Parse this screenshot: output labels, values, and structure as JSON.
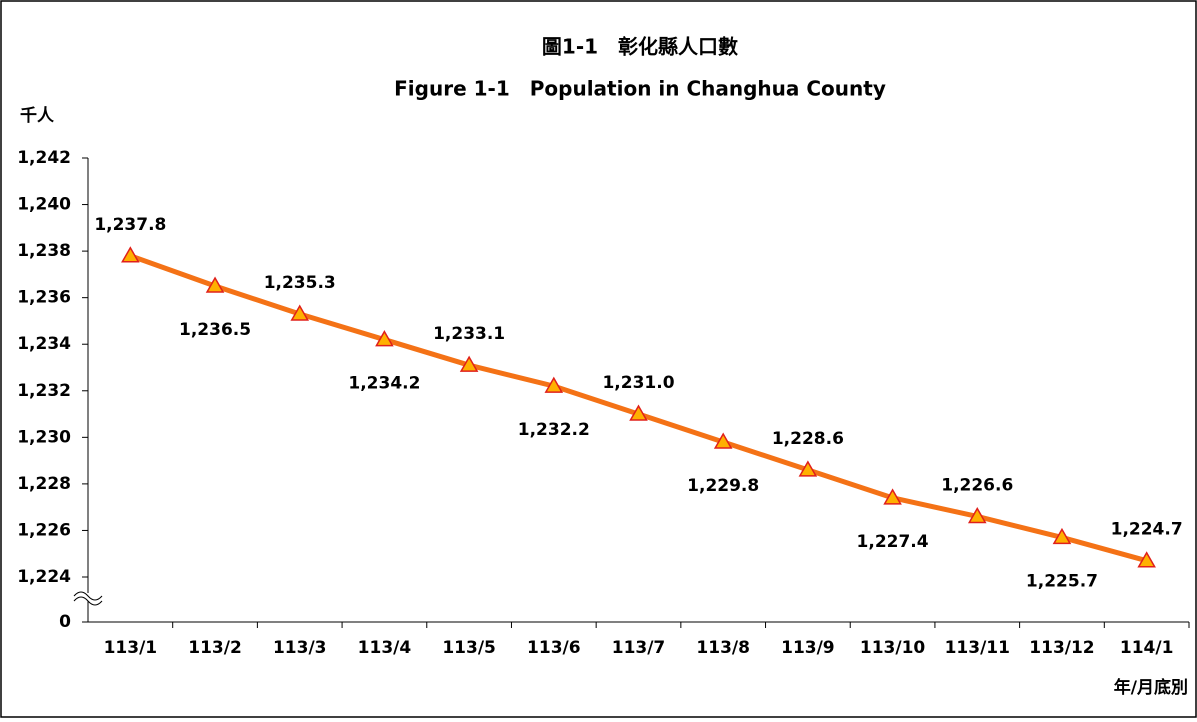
{
  "chart_data": {
    "type": "line",
    "title": "圖1-1　彰化縣人口數",
    "subtitle": "Figure 1-1　Population in Changhua County",
    "y_label": "千人",
    "x_label": "年/月底別",
    "categories": [
      "113/1",
      "113/2",
      "113/3",
      "113/4",
      "113/5",
      "113/6",
      "113/7",
      "113/8",
      "113/9",
      "113/10",
      "113/11",
      "113/12",
      "114/1"
    ],
    "series": [
      {
        "name": "Population",
        "color": "#f47216",
        "marker_color": "#ffb000",
        "marker_edge": "#e0201b",
        "values": [
          1237.8,
          1236.5,
          1235.3,
          1234.2,
          1233.1,
          1232.2,
          1231.0,
          1229.8,
          1228.6,
          1227.4,
          1226.6,
          1225.7,
          1224.7
        ],
        "value_labels": [
          "1,237.8",
          "1,236.5",
          "1,235.3",
          "1,234.2",
          "1,233.1",
          "1,232.2",
          "1,231.0",
          "1,229.8",
          "1,228.6",
          "1,227.4",
          "1,226.6",
          "1,225.7",
          "1,224.7"
        ]
      }
    ],
    "ylim": [
      0,
      1242
    ],
    "axis_break": [
      0,
      1224
    ],
    "yticks": [
      0,
      {
        "value": 1224,
        "label": "1,224"
      },
      {
        "value": 1226,
        "label": "1,226"
      },
      {
        "value": 1228,
        "label": "1,228"
      },
      {
        "value": 1230,
        "label": "1,230"
      },
      {
        "value": 1232,
        "label": "1,232"
      },
      {
        "value": 1234,
        "label": "1,234"
      },
      {
        "value": 1236,
        "label": "1,236"
      },
      {
        "value": 1238,
        "label": "1,238"
      },
      {
        "value": 1240,
        "label": "1,240"
      },
      {
        "value": 1242,
        "label": "1,242"
      }
    ],
    "grid": false
  }
}
